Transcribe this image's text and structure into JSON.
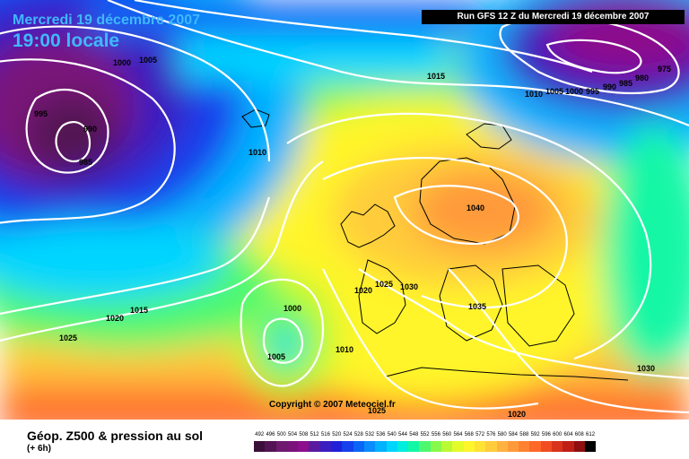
{
  "header": {
    "date": "Mercredi 19 décembre 2007",
    "time": "19:00 locale",
    "run": "Run GFS 12 Z du Mercredi 19 décembre 2007"
  },
  "copyright": "Copyright © 2007 Meteociel.fr",
  "footer": {
    "title": "Géop. Z500 & pression au sol",
    "subtitle": "(+ 6h)"
  },
  "isobar_labels": [
    "1000",
    "1005",
    "995",
    "990",
    "985",
    "1015",
    "1010",
    "1005",
    "1000",
    "995",
    "990",
    "985",
    "980",
    "975",
    "1010",
    "1040",
    "1020",
    "1025",
    "1030",
    "1035",
    "1000",
    "1015",
    "1020",
    "1025",
    "1005",
    "1010",
    "1025",
    "1030",
    "1020"
  ],
  "scale": {
    "labels": [
      "492",
      "496",
      "500",
      "504",
      "508",
      "512",
      "516",
      "520",
      "524",
      "528",
      "532",
      "536",
      "540",
      "544",
      "548",
      "552",
      "556",
      "560",
      "564",
      "568",
      "572",
      "576",
      "580",
      "584",
      "588",
      "592",
      "596",
      "600",
      "604",
      "608",
      "612"
    ],
    "colors": [
      "#3a0f3a",
      "#531453",
      "#6e1a6e",
      "#7a137a",
      "#8c0f8c",
      "#5a1aa0",
      "#3b1ec0",
      "#2020d8",
      "#1540ec",
      "#0a66f5",
      "#0a8cff",
      "#00b2ff",
      "#00d5ff",
      "#00eedd",
      "#12f7a6",
      "#4df870",
      "#86f94b",
      "#b9fa33",
      "#e4fb2a",
      "#fff52b",
      "#ffe233",
      "#ffcc3a",
      "#ffb240",
      "#ff9a3a",
      "#ff8230",
      "#ff6828",
      "#f14c22",
      "#d9331c",
      "#bf1f17",
      "#8d0f0f",
      "#000000"
    ]
  }
}
